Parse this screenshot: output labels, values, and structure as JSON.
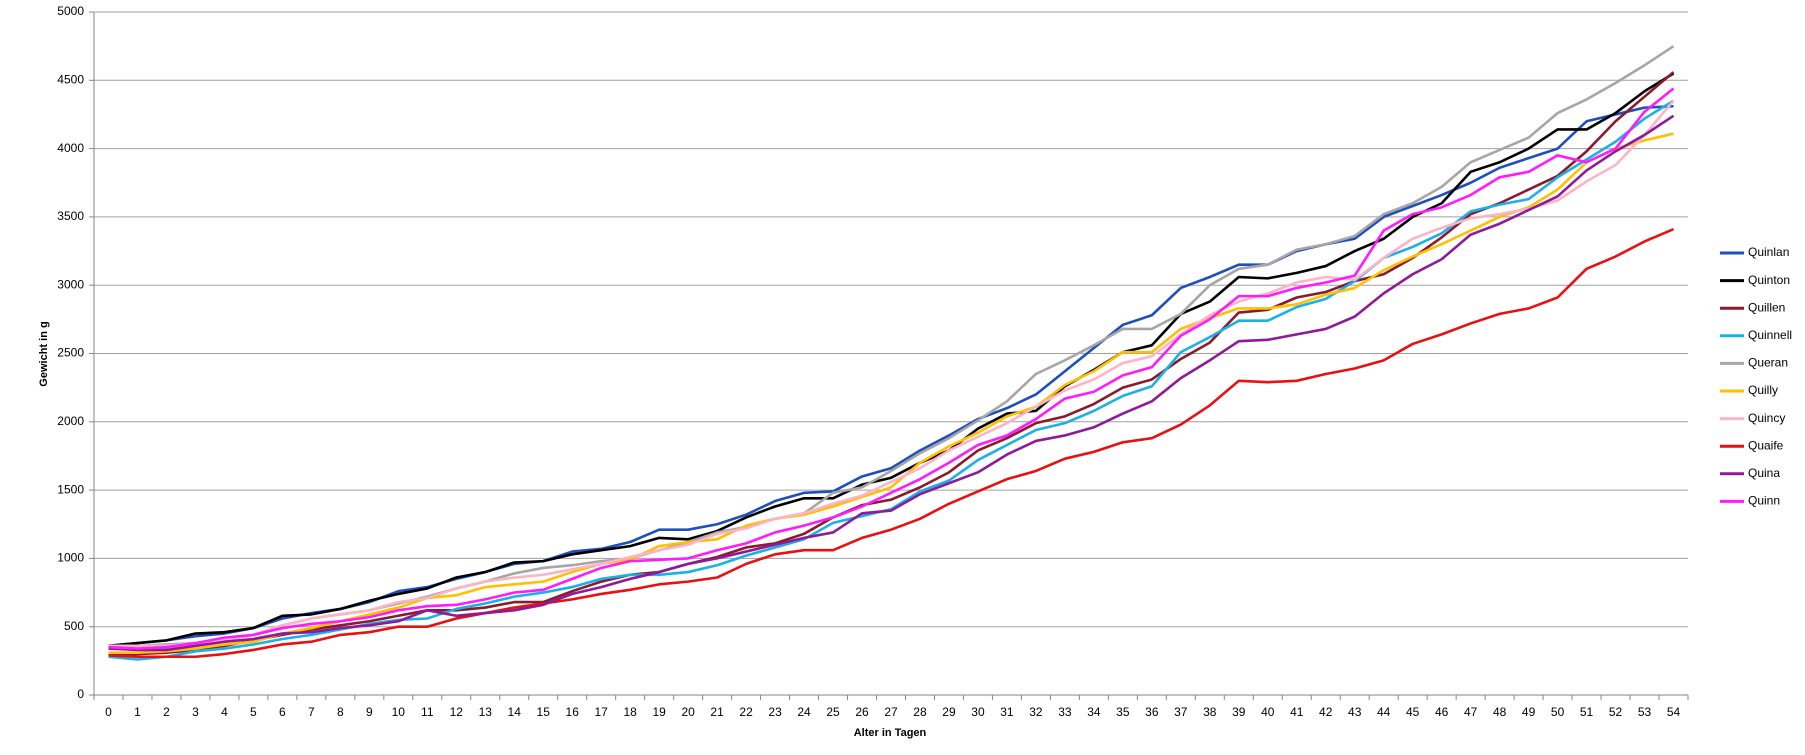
{
  "chart_data": {
    "type": "line",
    "x_label": "Alter in Tagen",
    "y_label": "Gewicht in g",
    "categories": [
      0,
      1,
      2,
      3,
      4,
      5,
      6,
      7,
      8,
      9,
      10,
      11,
      12,
      13,
      14,
      15,
      16,
      17,
      18,
      19,
      20,
      21,
      22,
      23,
      24,
      25,
      26,
      27,
      28,
      29,
      30,
      31,
      32,
      33,
      34,
      35,
      36,
      37,
      38,
      39,
      40,
      41,
      42,
      43,
      44,
      45,
      46,
      47,
      48,
      49,
      50,
      51,
      52,
      53,
      54
    ],
    "ylim": [
      0,
      5000
    ],
    "yticks": [
      0,
      500,
      1000,
      1500,
      2000,
      2500,
      3000,
      3500,
      4000,
      4500,
      5000
    ],
    "grid": true,
    "legend": "right",
    "series": [
      {
        "name": "Quinlan",
        "color": "#1f4fbf",
        "values": [
          360,
          380,
          400,
          430,
          450,
          490,
          560,
          600,
          630,
          680,
          760,
          790,
          850,
          900,
          960,
          980,
          1050,
          1070,
          1120,
          1210,
          1210,
          1250,
          1320,
          1420,
          1480,
          1490,
          1600,
          1660,
          1790,
          1900,
          2020,
          2100,
          2200,
          2370,
          2540,
          2710,
          2780,
          2980,
          3060,
          3150,
          3150,
          3250,
          3300,
          3340,
          3500,
          3580,
          3660,
          3750,
          3860,
          3930,
          4000,
          4200,
          4250,
          4300,
          4310
        ]
      },
      {
        "name": "Quinton",
        "color": "#000000",
        "values": [
          360,
          380,
          400,
          450,
          460,
          490,
          580,
          590,
          630,
          690,
          740,
          780,
          860,
          900,
          970,
          980,
          1030,
          1060,
          1090,
          1150,
          1140,
          1200,
          1300,
          1380,
          1440,
          1440,
          1540,
          1590,
          1700,
          1790,
          1950,
          2060,
          2080,
          2260,
          2380,
          2510,
          2560,
          2790,
          2880,
          3060,
          3050,
          3090,
          3140,
          3250,
          3340,
          3500,
          3600,
          3830,
          3900,
          4000,
          4140,
          4140,
          4260,
          4420,
          4550
        ]
      },
      {
        "name": "Quillen",
        "color": "#8b1a2b",
        "values": [
          290,
          300,
          310,
          330,
          360,
          400,
          440,
          480,
          510,
          540,
          580,
          620,
          620,
          640,
          680,
          680,
          760,
          830,
          880,
          900,
          960,
          1010,
          1080,
          1110,
          1180,
          1300,
          1390,
          1430,
          1520,
          1630,
          1790,
          1880,
          1990,
          2040,
          2130,
          2250,
          2310,
          2460,
          2580,
          2800,
          2820,
          2910,
          2950,
          3030,
          3080,
          3200,
          3350,
          3520,
          3600,
          3700,
          3800,
          3980,
          4200,
          4380,
          4560
        ]
      },
      {
        "name": "Quinnell",
        "color": "#1ab0e8",
        "values": [
          280,
          260,
          280,
          320,
          340,
          370,
          410,
          440,
          480,
          520,
          550,
          560,
          630,
          670,
          720,
          750,
          790,
          850,
          880,
          880,
          900,
          950,
          1020,
          1080,
          1140,
          1260,
          1310,
          1360,
          1490,
          1570,
          1720,
          1830,
          1940,
          1990,
          2080,
          2190,
          2260,
          2510,
          2620,
          2740,
          2740,
          2840,
          2900,
          3030,
          3200,
          3280,
          3380,
          3540,
          3590,
          3630,
          3790,
          3920,
          4050,
          4220,
          4350
        ]
      },
      {
        "name": "Queran",
        "color": "#a6a6a6",
        "values": [
          350,
          360,
          370,
          380,
          400,
          440,
          510,
          560,
          590,
          620,
          670,
          720,
          780,
          830,
          890,
          930,
          950,
          980,
          1000,
          1060,
          1120,
          1190,
          1230,
          1290,
          1330,
          1480,
          1520,
          1640,
          1770,
          1880,
          2010,
          2150,
          2350,
          2450,
          2560,
          2680,
          2680,
          2790,
          3000,
          3120,
          3150,
          3260,
          3300,
          3360,
          3520,
          3600,
          3720,
          3900,
          3990,
          4080,
          4260,
          4360,
          4480,
          4610,
          4750
        ]
      },
      {
        "name": "Quilly",
        "color": "#ffc000",
        "values": [
          310,
          310,
          320,
          340,
          370,
          390,
          450,
          490,
          540,
          590,
          640,
          710,
          730,
          790,
          810,
          830,
          900,
          960,
          990,
          1090,
          1120,
          1140,
          1240,
          1290,
          1320,
          1380,
          1450,
          1520,
          1700,
          1820,
          1920,
          2040,
          2110,
          2270,
          2370,
          2510,
          2510,
          2680,
          2760,
          2830,
          2830,
          2860,
          2930,
          2980,
          3110,
          3210,
          3300,
          3400,
          3500,
          3570,
          3700,
          3900,
          4000,
          4060,
          4110
        ]
      },
      {
        "name": "Quincy",
        "color": "#ffb3c6",
        "values": [
          360,
          360,
          360,
          380,
          400,
          440,
          510,
          560,
          590,
          620,
          680,
          710,
          780,
          830,
          860,
          880,
          920,
          960,
          1010,
          1060,
          1100,
          1180,
          1220,
          1290,
          1330,
          1400,
          1460,
          1560,
          1660,
          1790,
          1890,
          1990,
          2110,
          2230,
          2310,
          2430,
          2480,
          2640,
          2780,
          2880,
          2940,
          3020,
          3060,
          3040,
          3200,
          3340,
          3420,
          3490,
          3520,
          3560,
          3620,
          3760,
          3880,
          4100,
          4350
        ]
      },
      {
        "name": "Quaife",
        "color": "#e81010",
        "values": [
          290,
          280,
          280,
          280,
          300,
          330,
          370,
          390,
          440,
          460,
          500,
          500,
          560,
          600,
          640,
          670,
          700,
          740,
          770,
          810,
          830,
          860,
          960,
          1030,
          1060,
          1060,
          1150,
          1210,
          1290,
          1400,
          1490,
          1580,
          1640,
          1730,
          1780,
          1850,
          1880,
          1980,
          2120,
          2300,
          2290,
          2300,
          2350,
          2390,
          2450,
          2570,
          2640,
          2720,
          2790,
          2830,
          2910,
          3120,
          3210,
          3320,
          3410
        ]
      },
      {
        "name": "Quina",
        "color": "#8e1a9a",
        "values": [
          340,
          330,
          330,
          360,
          390,
          410,
          450,
          460,
          490,
          510,
          540,
          620,
          580,
          600,
          620,
          660,
          740,
          790,
          850,
          900,
          960,
          1000,
          1050,
          1100,
          1150,
          1190,
          1330,
          1350,
          1470,
          1550,
          1630,
          1760,
          1860,
          1900,
          1960,
          2060,
          2150,
          2320,
          2450,
          2590,
          2600,
          2640,
          2680,
          2770,
          2940,
          3080,
          3190,
          3370,
          3450,
          3550,
          3650,
          3840,
          3980,
          4100,
          4240
        ]
      },
      {
        "name": "Quinn",
        "color": "#ff1aff",
        "values": [
          350,
          340,
          350,
          380,
          420,
          440,
          490,
          520,
          540,
          570,
          620,
          650,
          660,
          700,
          750,
          770,
          850,
          930,
          980,
          990,
          1000,
          1060,
          1110,
          1190,
          1240,
          1300,
          1380,
          1480,
          1580,
          1700,
          1830,
          1900,
          2020,
          2170,
          2220,
          2340,
          2400,
          2630,
          2750,
          2920,
          2920,
          2980,
          3020,
          3070,
          3400,
          3520,
          3570,
          3660,
          3790,
          3830,
          3950,
          3900,
          4000,
          4270,
          4440
        ]
      }
    ]
  }
}
